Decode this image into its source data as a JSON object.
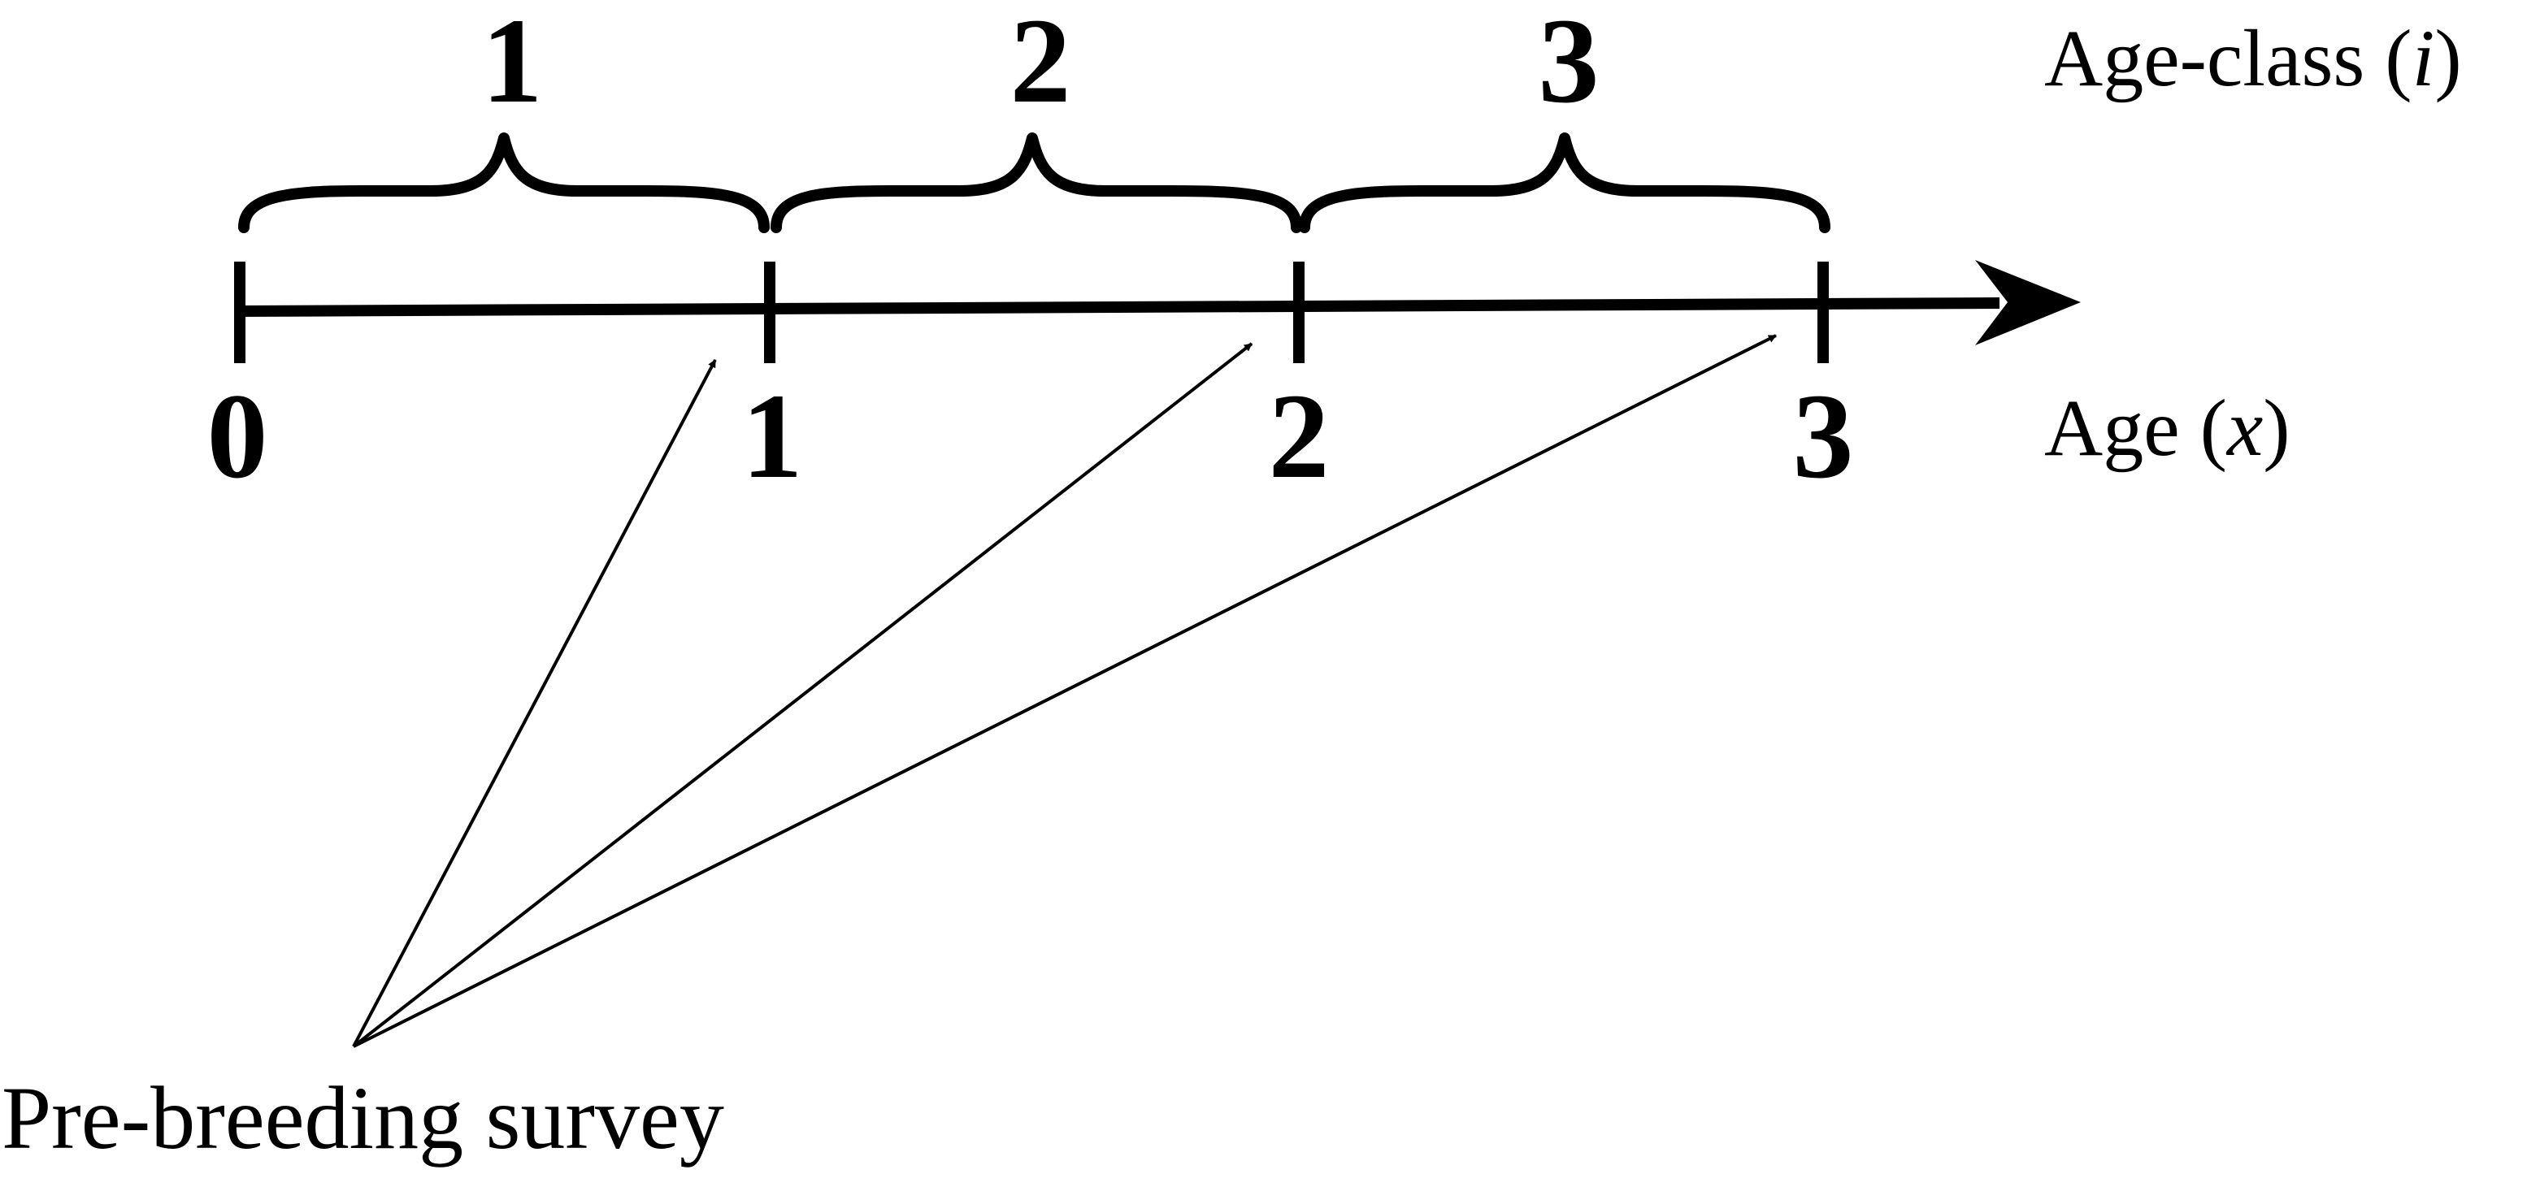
{
  "diagram": {
    "age_class_title": {
      "prefix": "Age-class (",
      "variable": "i",
      "suffix": ")"
    },
    "age_title": {
      "prefix": "Age (",
      "variable": "x",
      "suffix": ")"
    },
    "age_class_labels": [
      "1",
      "2",
      "3"
    ],
    "age_tick_labels": [
      "0",
      "1",
      "2",
      "3"
    ],
    "survey_label": "Pre-breeding survey",
    "line_color": "#000000"
  }
}
